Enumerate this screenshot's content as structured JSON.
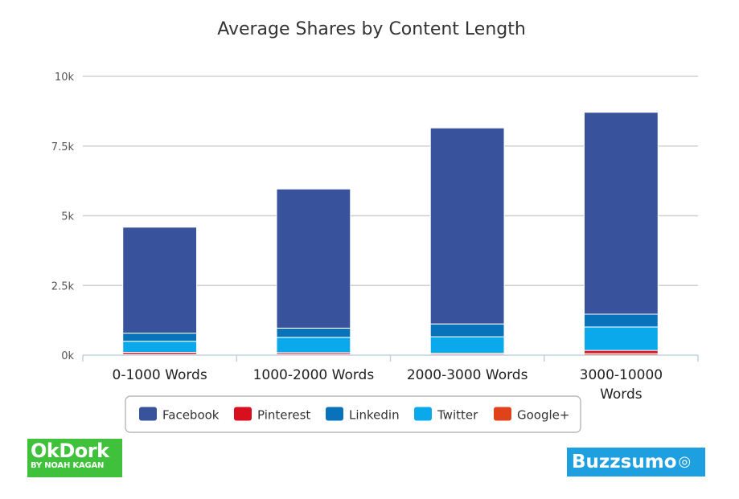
{
  "chart_data": {
    "type": "bar",
    "stacked": true,
    "title": "Average Shares by Content Length",
    "categories": [
      "0-1000 Words",
      "1000-2000 Words",
      "2000-3000 Words",
      "3000-10000 Words"
    ],
    "series": [
      {
        "name": "Google+",
        "color": "#e0431c",
        "values": [
          30,
          30,
          30,
          60
        ]
      },
      {
        "name": "Pinterest",
        "color": "#d80f1e",
        "values": [
          70,
          60,
          40,
          110
        ]
      },
      {
        "name": "Twitter",
        "color": "#0aa9ec",
        "values": [
          400,
          550,
          590,
          840
        ]
      },
      {
        "name": "Linkedin",
        "color": "#0873ba",
        "values": [
          290,
          330,
          460,
          460
        ]
      },
      {
        "name": "Facebook",
        "color": "#38529c",
        "values": [
          3800,
          4990,
          7030,
          7240
        ]
      }
    ],
    "legend_order": [
      "Facebook",
      "Pinterest",
      "Linkedin",
      "Twitter",
      "Google+"
    ],
    "ylim": [
      0,
      10000
    ],
    "yticks": [
      0,
      2500,
      5000,
      7500,
      10000
    ],
    "ytick_labels": [
      "0k",
      "2.5k",
      "5k",
      "7.5k",
      "10k"
    ],
    "grid": true,
    "legend_position": "bottom"
  },
  "logos": {
    "left_main": "OkDork",
    "left_sub": "BY NOAH KAGAN",
    "right_main": "Buzzsumo"
  }
}
